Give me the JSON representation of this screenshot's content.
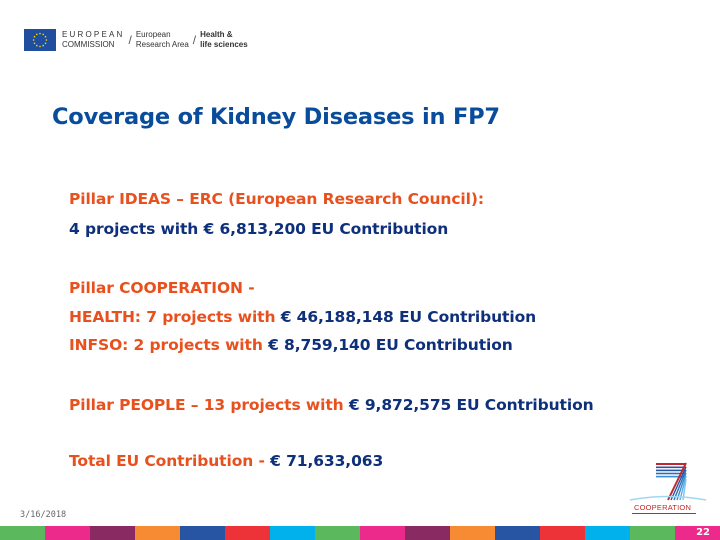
{
  "header": {
    "org_line1": "EUROPEAN",
    "org_line2": "COMMISSION",
    "area_line1": "European",
    "area_line2": "Research Area",
    "domain_line1": "Health &",
    "domain_line2": "life sciences",
    "separator": "/"
  },
  "title": "Coverage of Kidney Diseases in FP7",
  "sections": {
    "ideas": {
      "line1": "Pillar IDEAS – ERC (European Research Council):",
      "line2": "4 projects with € 6,813,200 EU Contribution"
    },
    "cooperation": {
      "line1": "Pillar COOPERATION -",
      "health_prefix": "HEALTH: 7 projects with ",
      "health_amount": "€ 46,188,148 EU Contribution",
      "infso_prefix": "INFSO: 2 projects with ",
      "infso_amount": "€ 8,759,140 EU Contribution"
    },
    "people": {
      "prefix": "Pillar PEOPLE – 13 projects with ",
      "amount": "€ 9,872,575 EU Contribution"
    },
    "total": {
      "prefix": "Total EU Contribution - ",
      "amount": "€ 71,633,063"
    }
  },
  "footer": {
    "date": "3/16/2018",
    "logo_label": "COOPERATION",
    "page_number": "22",
    "band_colors": [
      "#5cb85c",
      "#ec2a8c",
      "#8a2a62",
      "#f68b33",
      "#2754a3",
      "#ee3338",
      "#00b1eb",
      "#5cb85c",
      "#ec2a8c",
      "#8a2a62",
      "#f68b33",
      "#2754a3",
      "#ee3338",
      "#00b1eb",
      "#5cb85c",
      "#ec2a8c"
    ]
  },
  "colors": {
    "title_blue": "#0a4c9c",
    "accent_orange": "#e8501e",
    "text_navy": "#0e2f7a",
    "eu_blue": "#1f4e9e"
  }
}
